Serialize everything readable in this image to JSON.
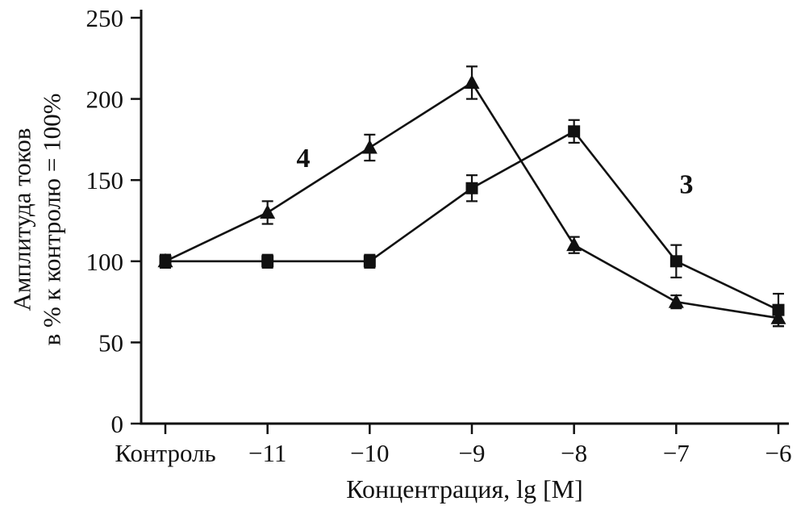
{
  "chart_data": {
    "type": "line",
    "title": "",
    "xlabel": "Концентрация, lg [M]",
    "ylabel_line1": "Амплитуда токов",
    "ylabel_line2": "в % к контролю = 100%",
    "categories": [
      "Контроль",
      "−11",
      "−10",
      "−9",
      "−8",
      "−7",
      "−6"
    ],
    "ylim": [
      0,
      250
    ],
    "yticks": [
      0,
      50,
      100,
      150,
      200,
      250
    ],
    "grid": false,
    "legend": "none",
    "series": [
      {
        "name": "4",
        "marker": "triangle",
        "values": [
          100,
          130,
          170,
          210,
          110,
          75,
          65
        ],
        "errors": [
          4,
          7,
          8,
          10,
          5,
          4,
          5
        ]
      },
      {
        "name": "3",
        "marker": "square",
        "values": [
          100,
          100,
          100,
          145,
          180,
          100,
          70
        ],
        "errors": [
          4,
          4,
          4,
          8,
          7,
          10,
          10
        ]
      }
    ],
    "annotations": [
      {
        "label": "4",
        "x_index": 1.35,
        "y": 158
      },
      {
        "label": "3",
        "x_index": 5.1,
        "y": 142
      }
    ],
    "colors": {
      "line": "#111111",
      "background": "#ffffff"
    }
  }
}
